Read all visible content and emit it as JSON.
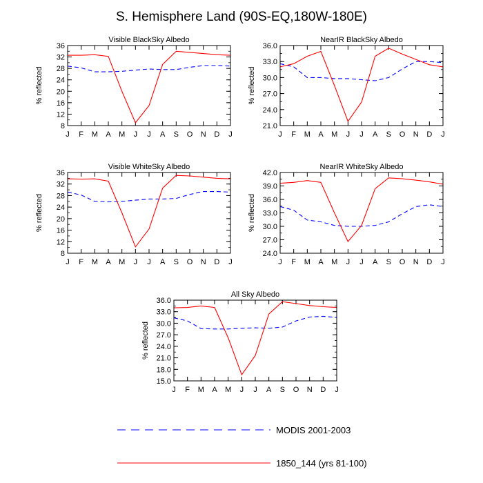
{
  "title": "S. Hemisphere Land (90S-EQ,180W-180E)",
  "months": [
    "J",
    "F",
    "M",
    "A",
    "M",
    "J",
    "J",
    "A",
    "S",
    "O",
    "N",
    "D",
    "J"
  ],
  "colors": {
    "modis": "#0000ff",
    "model": "#ff0000",
    "axis": "#000000"
  },
  "chart_data": [
    {
      "type": "line",
      "title": "Visible BlackSky Albedo",
      "ylabel": "% reflected",
      "ylim": [
        8,
        36
      ],
      "yticks": [
        8,
        12,
        16,
        20,
        24,
        28,
        32,
        36
      ],
      "ydecimals": 0,
      "series": [
        {
          "name": "MODIS 2001-2003",
          "style": "dashed",
          "values": [
            28.8,
            28.2,
            26.8,
            26.8,
            27.0,
            27.4,
            27.8,
            27.6,
            27.6,
            28.4,
            29.0,
            29.0,
            28.8
          ]
        },
        {
          "name": "1850_144 (yrs 81-100)",
          "style": "solid",
          "values": [
            32.6,
            32.6,
            32.8,
            32.2,
            20.0,
            9.0,
            15.0,
            29.4,
            34.0,
            33.6,
            33.2,
            32.8,
            32.6
          ]
        }
      ]
    },
    {
      "type": "line",
      "title": "NearIR BlackSky Albedo",
      "ylabel": "% reflected",
      "ylim": [
        21.0,
        36.0
      ],
      "yticks": [
        21.0,
        24.0,
        27.0,
        30.0,
        33.0,
        36.0
      ],
      "ydecimals": 1,
      "series": [
        {
          "name": "MODIS 2001-2003",
          "style": "dashed",
          "values": [
            32.6,
            32.0,
            30.0,
            30.0,
            29.8,
            29.8,
            29.6,
            29.4,
            30.0,
            31.6,
            33.0,
            33.0,
            32.8
          ]
        },
        {
          "name": "1850_144 (yrs 81-100)",
          "style": "solid",
          "values": [
            32.0,
            32.6,
            34.0,
            34.9,
            28.5,
            21.8,
            25.4,
            34.0,
            35.5,
            34.4,
            33.4,
            32.4,
            32.0
          ]
        }
      ]
    },
    {
      "type": "line",
      "title": "Visible WhiteSky Albedo",
      "ylabel": "% reflected",
      "ylim": [
        8,
        36
      ],
      "yticks": [
        8,
        12,
        16,
        20,
        24,
        28,
        32,
        36
      ],
      "ydecimals": 0,
      "series": [
        {
          "name": "MODIS 2001-2003",
          "style": "dashed",
          "values": [
            29.2,
            28.2,
            26.0,
            25.8,
            26.0,
            26.4,
            26.8,
            26.8,
            27.0,
            28.4,
            29.4,
            29.4,
            29.2
          ]
        },
        {
          "name": "1850_144 (yrs 81-100)",
          "style": "solid",
          "values": [
            33.8,
            33.7,
            33.8,
            33.0,
            22.0,
            10.2,
            16.4,
            30.6,
            35.0,
            34.8,
            34.4,
            34.0,
            33.8
          ]
        }
      ]
    },
    {
      "type": "line",
      "title": "NearIR WhiteSky Albedo",
      "ylabel": "% reflected",
      "ylim": [
        24.0,
        42.0
      ],
      "yticks": [
        24.0,
        27.0,
        30.0,
        33.0,
        36.0,
        39.0,
        42.0
      ],
      "ydecimals": 1,
      "series": [
        {
          "name": "MODIS 2001-2003",
          "style": "dashed",
          "values": [
            34.4,
            33.6,
            31.4,
            31.0,
            30.2,
            30.0,
            30.0,
            30.2,
            31.0,
            32.8,
            34.4,
            34.8,
            34.4
          ]
        },
        {
          "name": "1850_144 (yrs 81-100)",
          "style": "solid",
          "values": [
            39.6,
            39.8,
            40.2,
            39.8,
            33.0,
            26.6,
            30.2,
            38.4,
            40.8,
            40.6,
            40.3,
            39.9,
            39.4
          ]
        }
      ]
    },
    {
      "type": "line",
      "title": "All Sky Albedo",
      "ylabel": "% reflected",
      "ylim": [
        15.0,
        36.0
      ],
      "yticks": [
        15.0,
        18.0,
        21.0,
        24.0,
        27.0,
        30.0,
        33.0,
        36.0
      ],
      "ydecimals": 1,
      "series": [
        {
          "name": "MODIS 2001-2003",
          "style": "dashed",
          "values": [
            31.4,
            30.6,
            28.6,
            28.5,
            28.5,
            28.7,
            28.8,
            28.7,
            29.0,
            30.6,
            31.6,
            31.8,
            31.5
          ]
        },
        {
          "name": "1850_144 (yrs 81-100)",
          "style": "solid",
          "values": [
            34.0,
            34.1,
            34.5,
            34.1,
            26.2,
            16.6,
            21.6,
            32.4,
            35.6,
            35.1,
            34.6,
            34.3,
            34.1
          ]
        }
      ]
    }
  ],
  "legend": [
    {
      "label": "MODIS 2001-2003",
      "style": "dashed",
      "color": "#0000ff"
    },
    {
      "label": "1850_144 (yrs 81-100)",
      "style": "solid",
      "color": "#ff0000"
    }
  ]
}
